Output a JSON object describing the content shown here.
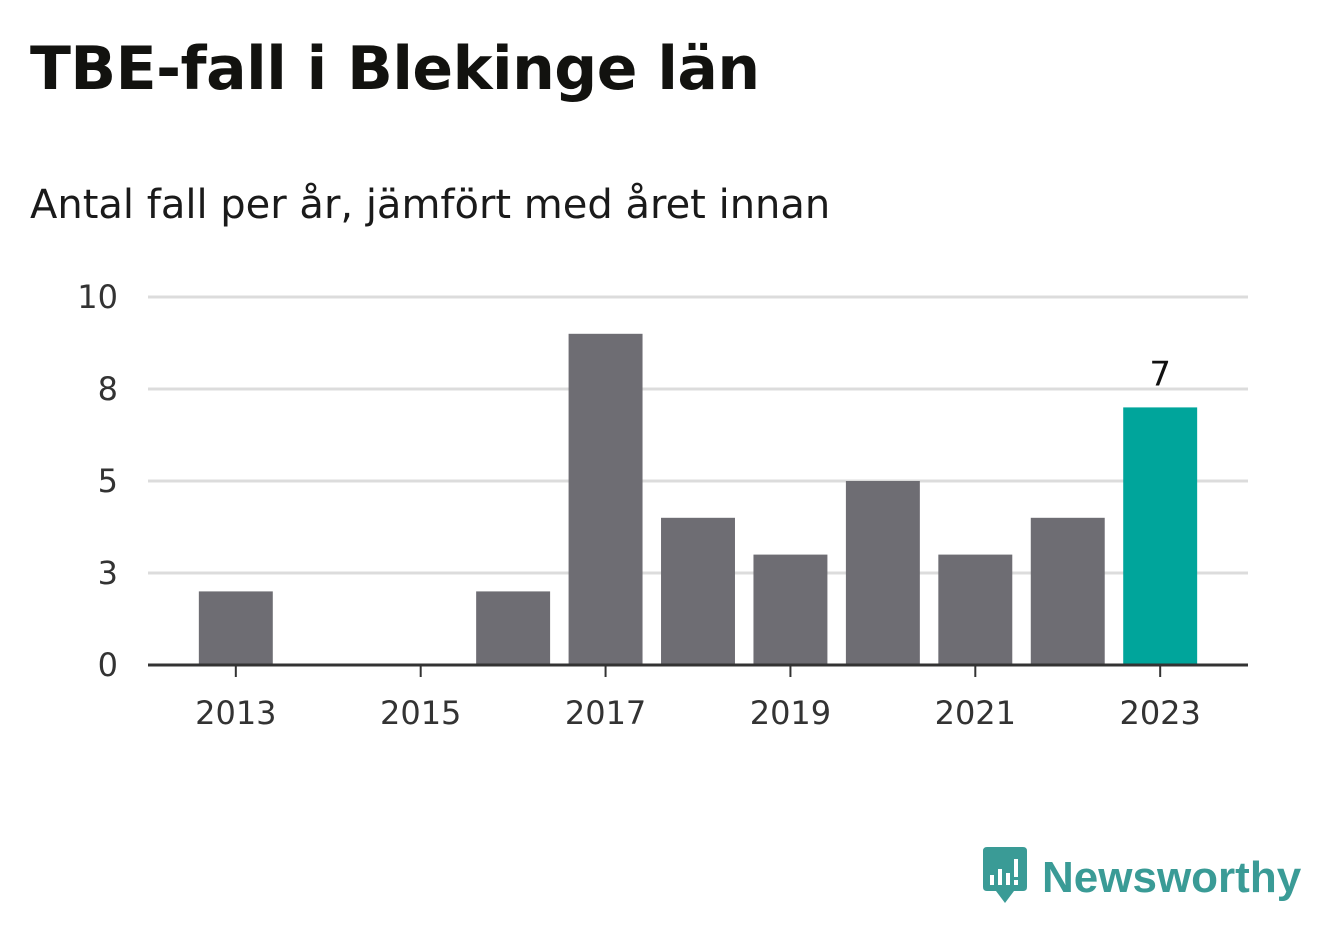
{
  "title": "TBE-fall i Blekinge län",
  "subtitle": "Antal fall per år, jämfört med året innan",
  "brand": {
    "name": "Newsworthy",
    "icon": "newsworthy-logo-icon"
  },
  "colors": {
    "bar": "#6e6d73",
    "highlight": "#00a59b",
    "grid": "#dcdcdc",
    "axis": "#333333"
  },
  "chart_data": {
    "type": "bar",
    "categories": [
      "2013",
      "2014",
      "2015",
      "2016",
      "2017",
      "2018",
      "2019",
      "2020",
      "2021",
      "2022",
      "2023"
    ],
    "values": [
      2,
      0,
      0,
      2,
      9,
      4,
      3,
      5,
      3,
      4,
      7
    ],
    "tick_labels": [
      "2013",
      "2015",
      "2017",
      "2019",
      "2021",
      "2023"
    ],
    "y_tick_labels": [
      "0",
      "3",
      "5",
      "8",
      "10"
    ],
    "highlight_index": 10,
    "data_labels": [
      {
        "index": 10,
        "text": "7"
      }
    ],
    "ylim": [
      0,
      10
    ],
    "grid": true,
    "xlabel": "",
    "ylabel": ""
  }
}
